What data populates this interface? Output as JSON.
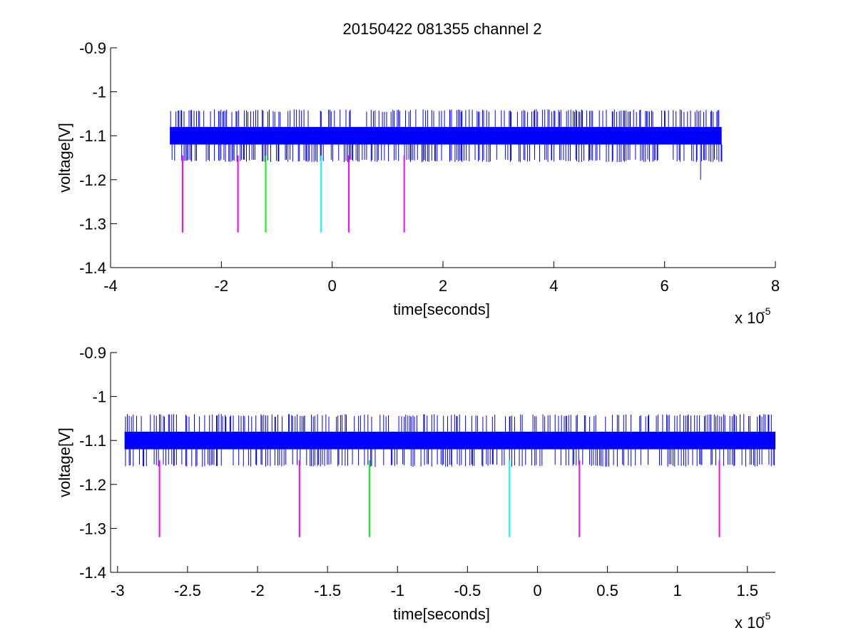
{
  "figure": {
    "title": "20150422 081355 channel 2"
  },
  "colors": {
    "noise": "#0000ff",
    "marker_magenta": "#ff00ff",
    "marker_green": "#00ff00",
    "marker_cyan": "#00ffff",
    "axes": "#000000"
  },
  "chart_data": [
    {
      "type": "line",
      "title": "20150422 081355 channel 2",
      "xlabel": "time[seconds]",
      "ylabel": "voltage[V]",
      "x_exponent_label": "x 10",
      "x_exponent": "-5",
      "xlim": [
        -4,
        8
      ],
      "ylim": [
        -1.4,
        -0.9
      ],
      "x_ticks": [
        -4,
        -2,
        0,
        2,
        4,
        6,
        8
      ],
      "x_tick_labels": [
        "-4",
        "-2",
        "0",
        "2",
        "4",
        "6",
        "8"
      ],
      "y_ticks": [
        -0.9,
        -1,
        -1.1,
        -1.2,
        -1.3,
        -1.4
      ],
      "y_tick_labels": [
        "-0.9",
        "-1",
        "-1.1",
        "-1.2",
        "-1.3",
        "-1.4"
      ],
      "grid": false,
      "legend": "none",
      "series": [
        {
          "kind": "noise_band",
          "color_key": "noise",
          "x_range": [
            -2.93,
            7.03
          ],
          "band": [
            -1.12,
            -1.08
          ],
          "spike_range": [
            -1.16,
            -1.04
          ],
          "outlier": {
            "x": 6.65,
            "y": -1.2
          }
        }
      ],
      "markers": [
        {
          "x": -2.7,
          "y_top": -1.145,
          "y_bottom": -1.32,
          "color_key": "marker_magenta"
        },
        {
          "x": -1.7,
          "y_top": -1.145,
          "y_bottom": -1.32,
          "color_key": "marker_magenta"
        },
        {
          "x": -1.2,
          "y_top": -1.145,
          "y_bottom": -1.32,
          "color_key": "marker_green"
        },
        {
          "x": -0.2,
          "y_top": -1.145,
          "y_bottom": -1.32,
          "color_key": "marker_cyan"
        },
        {
          "x": 0.3,
          "y_top": -1.145,
          "y_bottom": -1.32,
          "color_key": "marker_magenta"
        },
        {
          "x": 1.3,
          "y_top": -1.145,
          "y_bottom": -1.32,
          "color_key": "marker_magenta"
        }
      ]
    },
    {
      "type": "line",
      "title": "",
      "xlabel": "time[seconds]",
      "ylabel": "voltage[V]",
      "x_exponent_label": "x 10",
      "x_exponent": "-5",
      "xlim": [
        -3.05,
        1.7
      ],
      "ylim": [
        -1.4,
        -0.9
      ],
      "x_ticks": [
        -3,
        -2.5,
        -2,
        -1.5,
        -1,
        -0.5,
        0,
        0.5,
        1,
        1.5
      ],
      "x_tick_labels": [
        "-3",
        "-2.5",
        "-2",
        "-1.5",
        "-1",
        "-0.5",
        "0",
        "0.5",
        "1",
        "1.5"
      ],
      "y_ticks": [
        -0.9,
        -1,
        -1.1,
        -1.2,
        -1.3,
        -1.4
      ],
      "y_tick_labels": [
        "-0.9",
        "-1",
        "-1.1",
        "-1.2",
        "-1.3",
        "-1.4"
      ],
      "grid": false,
      "legend": "none",
      "series": [
        {
          "kind": "noise_band",
          "color_key": "noise",
          "x_range": [
            -2.95,
            1.7
          ],
          "band": [
            -1.12,
            -1.08
          ],
          "spike_range": [
            -1.16,
            -1.04
          ]
        }
      ],
      "markers": [
        {
          "x": -2.7,
          "y_top": -1.145,
          "y_bottom": -1.32,
          "color_key": "marker_magenta"
        },
        {
          "x": -1.7,
          "y_top": -1.145,
          "y_bottom": -1.32,
          "color_key": "marker_magenta"
        },
        {
          "x": -1.2,
          "y_top": -1.145,
          "y_bottom": -1.32,
          "color_key": "marker_green"
        },
        {
          "x": -0.2,
          "y_top": -1.145,
          "y_bottom": -1.32,
          "color_key": "marker_cyan"
        },
        {
          "x": 0.3,
          "y_top": -1.145,
          "y_bottom": -1.32,
          "color_key": "marker_magenta"
        },
        {
          "x": 1.3,
          "y_top": -1.145,
          "y_bottom": -1.32,
          "color_key": "marker_magenta"
        }
      ]
    }
  ]
}
